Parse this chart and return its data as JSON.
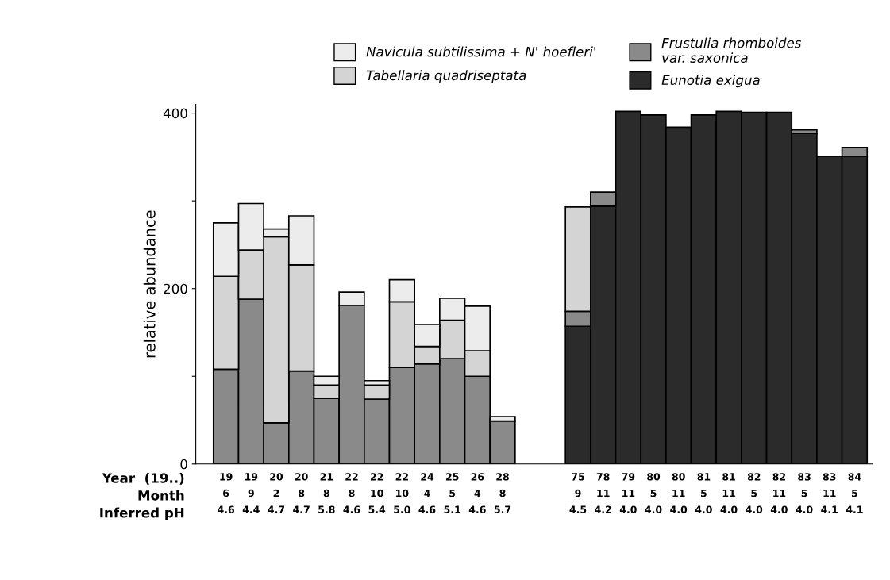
{
  "chart_data": {
    "type": "bar",
    "stacked": true,
    "ylabel": "relative abundance",
    "categories": [
      "19\n6\n4.6",
      "19\n9\n4.4",
      "20\n2\n4.7",
      "20\n8\n4.7",
      "21\n8\n5.8",
      "22\n8\n4.6",
      "22\n10\n5.4",
      "22\n10\n5.0",
      "24\n4\n4.6",
      "25\n5\n5.1",
      "26\n4\n4.6",
      "28\n8\n5.7",
      null,
      null,
      "75\n9\n4.5",
      "78\n11\n4.2",
      "79\n11\n4.0",
      "80\n5\n4.0",
      "80\n11\n4.0",
      "81\n5\n4.0",
      "81\n11\n4.0",
      "82\n5\n4.0",
      "82\n11\n4.0",
      "83\n5\n4.0",
      "83\n11\n4.1",
      "84\n5\n4.1"
    ],
    "series": [
      {
        "name": "Eunotia exigua",
        "color": "#2b2b2b",
        "values": [
          0,
          0,
          0,
          0,
          0,
          0,
          0,
          0,
          0,
          0,
          0,
          0,
          null,
          null,
          157,
          294,
          402,
          398,
          384,
          398,
          402,
          401,
          401,
          377,
          351,
          351
        ]
      },
      {
        "name": "Frustulia rhomboides\nvar. saxonica",
        "color": "#8a8a8a",
        "values": [
          108,
          188,
          47,
          106,
          75,
          181,
          74,
          110,
          114,
          120,
          100,
          49,
          null,
          null,
          17,
          16,
          0,
          0,
          0,
          0,
          0,
          0,
          0,
          4,
          0,
          10
        ]
      },
      {
        "name": "Tabellaria quadriseptata",
        "color": "#d4d4d4",
        "values": [
          106,
          56,
          212,
          121,
          15,
          0,
          16,
          75,
          20,
          44,
          29,
          0,
          null,
          null,
          119,
          0,
          0,
          0,
          0,
          0,
          0,
          0,
          0,
          0,
          0,
          0
        ]
      },
      {
        "name": "Navicula subtilissima + N' hoefleri'",
        "color": "#ececec",
        "values": [
          61,
          53,
          9,
          56,
          10,
          15,
          5,
          25,
          25,
          25,
          51,
          5,
          null,
          null,
          0,
          0,
          0,
          0,
          0,
          0,
          0,
          0,
          0,
          0,
          0,
          0
        ]
      }
    ],
    "ylim": [
      0,
      410
    ],
    "yticks": [
      0,
      {
        "value": 100,
        "label": null
      },
      200,
      {
        "value": 300,
        "label": null
      },
      400
    ],
    "annotations": [
      "Year  (19..)",
      "Month",
      "Inferred pH"
    ],
    "legend": "top",
    "grid": false
  }
}
